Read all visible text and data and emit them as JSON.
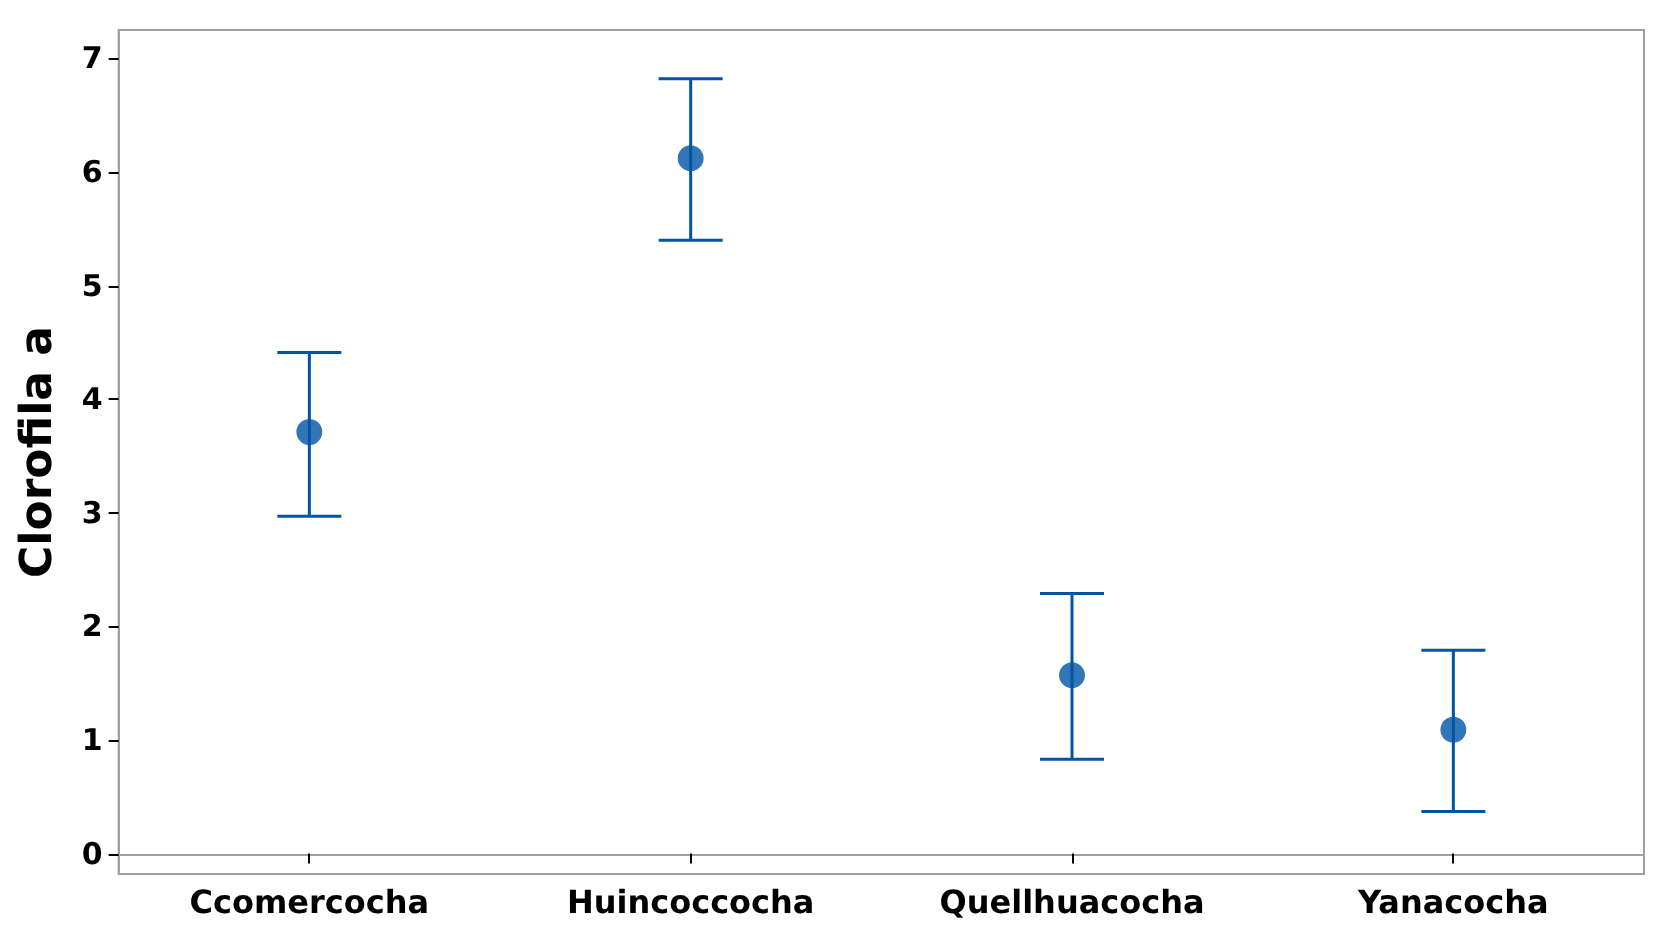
{
  "chart_data": {
    "type": "scatter",
    "ylabel": "Clorofila a",
    "categories": [
      "Ccomercocha",
      "Huincoccocha",
      "Quellhuacocha",
      "Yanacocha"
    ],
    "values": [
      3.71,
      6.12,
      1.57,
      1.09
    ],
    "errors": [
      [
        2.97,
        4.41
      ],
      [
        5.4,
        6.82
      ],
      [
        0.83,
        2.29
      ],
      [
        0.37,
        1.79
      ]
    ],
    "color": "#0054a6",
    "marker": "circle",
    "ylim": [
      -0.18,
      7.25
    ],
    "yticks": [
      0,
      1,
      2,
      3,
      4,
      5,
      6,
      7
    ]
  }
}
